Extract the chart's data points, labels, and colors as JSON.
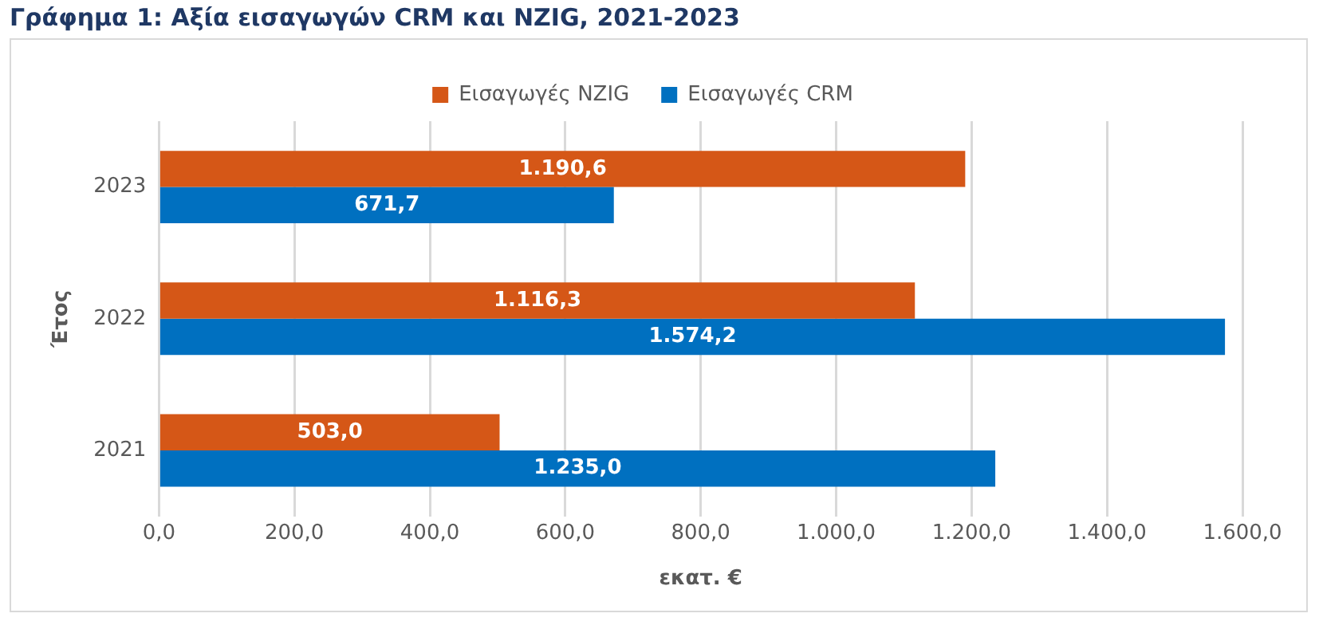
{
  "chart_data": {
    "type": "bar",
    "orientation": "horizontal",
    "title": "Γράφημα 1: Αξία εισαγωγών CRM και NZIG, 2021-2023",
    "xlabel": "εκατ. €",
    "ylabel": "Έτος",
    "categories": [
      "2023",
      "2022",
      "2021"
    ],
    "series": [
      {
        "name": "Εισαγωγές NZIG",
        "color": "#d55717",
        "values": [
          1190.6,
          1116.3,
          503.0
        ],
        "value_labels": [
          "1.190,6",
          "1.116,3",
          "503,0"
        ]
      },
      {
        "name": "Εισαγωγές CRM",
        "color": "#0070c0",
        "values": [
          671.7,
          1574.2,
          1235.0
        ],
        "value_labels": [
          "671,7",
          "1.574,2",
          "1.235,0"
        ]
      }
    ],
    "xlim": [
      0,
      1600
    ],
    "xticks": [
      {
        "value": 0,
        "label": "0,0"
      },
      {
        "value": 200,
        "label": "200,0"
      },
      {
        "value": 400,
        "label": "400,0"
      },
      {
        "value": 600,
        "label": "600,0"
      },
      {
        "value": 800,
        "label": "800,0"
      },
      {
        "value": 1000,
        "label": "1.000,0"
      },
      {
        "value": 1200,
        "label": "1.200,0"
      },
      {
        "value": 1400,
        "label": "1.400,0"
      },
      {
        "value": 1600,
        "label": "1.600,0"
      }
    ],
    "grid": "x",
    "legend": "top"
  }
}
